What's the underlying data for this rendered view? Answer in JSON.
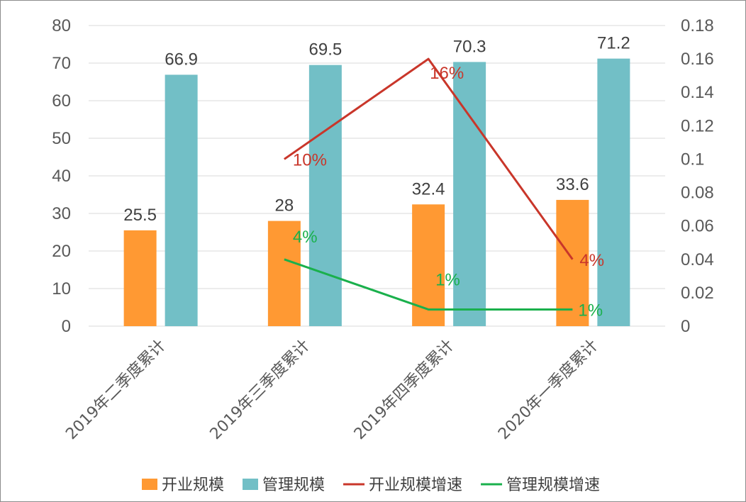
{
  "chart_data": {
    "type": "bar",
    "categories": [
      "2019年二季度累计",
      "2019年三季度累计",
      "2019年四季度累计",
      "2020年一季度累计"
    ],
    "series": [
      {
        "name": "开业规模",
        "type": "bar",
        "axis": "left",
        "color": "#FF9933",
        "values": [
          25.5,
          28,
          32.4,
          33.6
        ],
        "labels": [
          "25.5",
          "28",
          "32.4",
          "33.6"
        ]
      },
      {
        "name": "管理规模",
        "type": "bar",
        "axis": "left",
        "color": "#72BFC6",
        "values": [
          66.9,
          69.5,
          70.3,
          71.2
        ],
        "labels": [
          "66.9",
          "69.5",
          "70.3",
          "71.2"
        ]
      },
      {
        "name": "开业规模增速",
        "type": "line",
        "axis": "right",
        "color": "#C9362A",
        "values": [
          null,
          0.1,
          0.16,
          0.04
        ],
        "labels": [
          null,
          "10%",
          "16%",
          "4%"
        ]
      },
      {
        "name": "管理规模增速",
        "type": "line",
        "axis": "right",
        "color": "#1AB04C",
        "values": [
          null,
          0.04,
          0.01,
          0.01
        ],
        "labels": [
          null,
          "4%",
          "1%",
          "1%"
        ]
      }
    ],
    "y_left": {
      "min": 0,
      "max": 80,
      "ticks": [
        "0",
        "10",
        "20",
        "30",
        "40",
        "50",
        "60",
        "70",
        "80"
      ]
    },
    "y_right": {
      "min": 0,
      "max": 0.18,
      "ticks": [
        "0",
        "0.02",
        "0.04",
        "0.06",
        "0.08",
        "0.1",
        "0.12",
        "0.14",
        "0.16",
        "0.18"
      ]
    },
    "grid": true,
    "legend_position": "bottom"
  }
}
